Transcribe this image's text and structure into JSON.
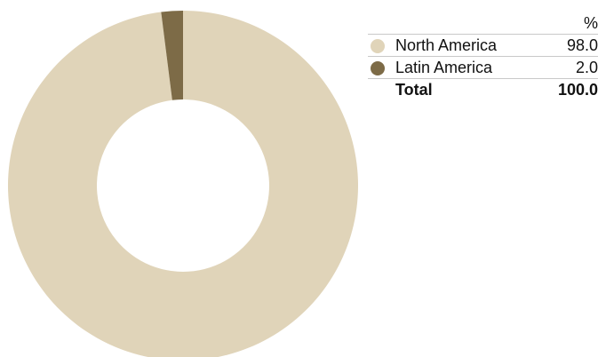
{
  "chart_data": {
    "type": "pie",
    "variant": "donut",
    "categories": [
      "North America",
      "Latin America"
    ],
    "values": [
      98.0,
      2.0
    ],
    "colors": [
      "#e0d4b9",
      "#7d6b47"
    ],
    "legend": {
      "unit_label": "%",
      "items": [
        {
          "label": "North America",
          "value": "98.0",
          "color": "#e0d4b9"
        },
        {
          "label": "Latin America",
          "value": "2.0",
          "color": "#7d6b47"
        }
      ],
      "total_label": "Total",
      "total_value": "100.0"
    }
  }
}
